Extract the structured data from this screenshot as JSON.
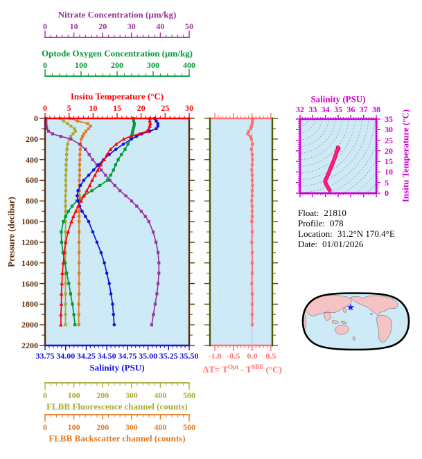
{
  "figure": {
    "background": "#ffffff",
    "plot_background": "#CEEAF6"
  },
  "axes": {
    "nitrate": {
      "title": "Nitrate Concentration (µm/kg)",
      "color": "#993399",
      "ticks": [
        "0",
        "10",
        "20",
        "30",
        "40",
        "50"
      ],
      "range": [
        0,
        50
      ]
    },
    "oxygen": {
      "title": "Optode Oxygen Concentration (µm/kg)",
      "color": "#009933",
      "ticks": [
        "0",
        "100",
        "200",
        "300",
        "400"
      ],
      "range": [
        0,
        400
      ]
    },
    "temperature": {
      "title": "Insitu Temperature (°C)",
      "color": "#FF0000",
      "ticks": [
        "0",
        "5",
        "10",
        "15",
        "20",
        "25",
        "30"
      ],
      "range": [
        0,
        30
      ]
    },
    "pressure": {
      "title": "Pressure (decibar)",
      "color": "#5A2D0B",
      "ticks": [
        "0",
        "200",
        "400",
        "600",
        "800",
        "1000",
        "1200",
        "1400",
        "1600",
        "1800",
        "2000",
        "2200"
      ],
      "range": [
        0,
        2200
      ]
    },
    "salinity": {
      "title": "Salinity (PSU)",
      "color": "#1111DD",
      "ticks": [
        "33.75",
        "34.00",
        "34.25",
        "34.50",
        "34.75",
        "35.00",
        "35.25",
        "35.50"
      ],
      "range": [
        33.75,
        35.5
      ]
    },
    "fluorescence": {
      "title": "FLBB Fluorescence channel (counts)",
      "color": "#AAAA33",
      "ticks": [
        "0",
        "100",
        "200",
        "300",
        "400",
        "500"
      ],
      "range": [
        0,
        500
      ]
    },
    "backscatter": {
      "title": "FLBB Backscatter channel (counts)",
      "color": "#E4791F",
      "ticks": [
        "0",
        "100",
        "200",
        "300",
        "400",
        "500"
      ],
      "range": [
        0,
        500
      ]
    },
    "delta": {
      "title_pre": "ΔT= T",
      "title_sup1": "Opt",
      "title_mid": " - T",
      "title_sup2": "SBE",
      "title_post": " (°C)",
      "color": "#FF7070",
      "frame_color": "#4C5800",
      "ticks": [
        "-1.0",
        "-0.5",
        "0.0",
        "0.5"
      ],
      "tick_values": [
        -1.0,
        -0.5,
        0.0,
        0.5
      ],
      "range": [
        -1.13,
        0.54
      ]
    },
    "ts": {
      "top_title": "Salinity (PSU)",
      "right_title": "Insitu Temperature (°C)",
      "color": "#CC00CC",
      "curve_color": "#FF14B4",
      "accent_color": "#EE1111",
      "top_ticks": [
        "32",
        "33",
        "34",
        "35",
        "36",
        "37",
        "38"
      ],
      "right_ticks": [
        "0",
        "5",
        "10",
        "15",
        "20",
        "25",
        "30",
        "35"
      ],
      "s_range": [
        32,
        38
      ],
      "t_range": [
        0,
        35
      ]
    }
  },
  "info": {
    "lines": [
      {
        "label": "Float:",
        "value": "21810"
      },
      {
        "label": "Profile:",
        "value": "078"
      },
      {
        "label": "Location:",
        "value": "31.2°N  170.4°E"
      },
      {
        "label": "Date:",
        "value": "01/01/2026"
      }
    ]
  },
  "map": {
    "land_color": "#F5C3C3",
    "ocean_color": "#CEEAF6",
    "outline_color": "#000000",
    "star_color": "#1A1AEE"
  },
  "chart_data": [
    {
      "type": "line",
      "title": "Vertical profiles vs pressure",
      "ylabel": "Pressure (decibar)",
      "ylim": [
        0,
        2200
      ],
      "y_inverted": true,
      "grid": false,
      "depths": [
        0,
        25,
        50,
        75,
        100,
        125,
        150,
        175,
        200,
        250,
        300,
        350,
        400,
        450,
        500,
        550,
        600,
        650,
        700,
        750,
        800,
        850,
        900,
        950,
        1000,
        1100,
        1200,
        1300,
        1400,
        1500,
        1600,
        1700,
        1800,
        1900,
        2000
      ],
      "series": [
        {
          "name": "Insitu Temperature (°C)",
          "color": "#FF0000",
          "marker": "triangle",
          "xlim": [
            0,
            30
          ],
          "values": [
            21.8,
            21.8,
            21.9,
            21.8,
            21.6,
            21.2,
            19.6,
            17.8,
            16.4,
            14.8,
            13.6,
            12.9,
            12.3,
            11.6,
            11.0,
            10.4,
            9.8,
            9.3,
            8.7,
            8.1,
            7.5,
            6.9,
            6.4,
            5.9,
            5.5,
            4.8,
            4.3,
            4.0,
            3.8,
            3.6,
            3.5,
            3.4,
            3.4,
            3.3,
            3.3
          ]
        },
        {
          "name": "Salinity (PSU)",
          "color": "#1111DD",
          "marker": "circle",
          "xlim": [
            33.75,
            35.5
          ],
          "values": [
            35.08,
            35.1,
            35.12,
            35.12,
            35.1,
            35.02,
            34.92,
            34.86,
            34.8,
            34.7,
            34.61,
            34.53,
            34.46,
            34.4,
            34.34,
            34.28,
            34.22,
            34.18,
            34.15,
            34.14,
            34.15,
            34.17,
            34.2,
            34.24,
            34.28,
            34.33,
            34.38,
            34.43,
            34.47,
            34.5,
            34.53,
            34.55,
            34.57,
            34.58,
            34.59
          ]
        },
        {
          "name": "Optode Oxygen Concentration (µm/kg)",
          "color": "#009933",
          "marker": "square",
          "xlim": [
            0,
            400
          ],
          "values": [
            245,
            246,
            248,
            247,
            245,
            243,
            242,
            240,
            238,
            230,
            222,
            212,
            203,
            196,
            190,
            182,
            173,
            152,
            130,
            108,
            88,
            75,
            65,
            57,
            51,
            45,
            46,
            50,
            55,
            60,
            66,
            71,
            76,
            80,
            83
          ]
        },
        {
          "name": "Nitrate Concentration (µm/kg)",
          "color": "#993399",
          "marker": "square",
          "xlim": [
            0,
            50
          ],
          "values": [
            0.3,
            0.3,
            0.3,
            0.4,
            0.6,
            1.2,
            2.6,
            5.5,
            9.0,
            12.0,
            14.0,
            15.3,
            16.5,
            18.0,
            19.5,
            21.0,
            22.5,
            24.2,
            26.0,
            28.0,
            30.0,
            31.8,
            33.4,
            34.8,
            36.0,
            37.5,
            38.5,
            39.2,
            39.5,
            39.5,
            39.2,
            38.8,
            38.2,
            37.6,
            37.0
          ]
        },
        {
          "name": "FLBB Fluorescence channel (counts)",
          "color": "#AAAA33",
          "marker": "square",
          "xlim": [
            0,
            500
          ],
          "values": [
            52,
            64,
            78,
            90,
            102,
            105,
            97,
            89,
            83,
            78,
            76,
            75,
            74,
            73,
            73,
            72,
            72,
            72,
            72,
            71,
            71,
            71,
            71,
            71,
            71,
            71,
            71,
            71,
            71,
            71,
            71,
            71,
            71,
            71,
            71
          ]
        },
        {
          "name": "FLBB Backscatter channel (counts)",
          "color": "#E4791F",
          "marker": "square",
          "xlim": [
            0,
            500
          ],
          "values": [
            86,
            112,
            148,
            158,
            151,
            142,
            135,
            130,
            126,
            123,
            122,
            121,
            121,
            120,
            120,
            120,
            119,
            119,
            119,
            119,
            119,
            118,
            118,
            118,
            118,
            118,
            118,
            118,
            118,
            118,
            118,
            118,
            117,
            117,
            117
          ]
        }
      ]
    },
    {
      "type": "line",
      "title": "ΔT = TOpt - TSBE (°C) vs pressure",
      "xlim": [
        -1.13,
        0.54
      ],
      "ylim": [
        0,
        2200
      ],
      "y_inverted": true,
      "color": "#FF7070",
      "depths": [
        0,
        25,
        50,
        75,
        100,
        125,
        150,
        175,
        200,
        250,
        300,
        350,
        400,
        450,
        500,
        550,
        600,
        650,
        700,
        750,
        800,
        850,
        900,
        950,
        1000,
        1100,
        1200,
        1300,
        1400,
        1500,
        1600,
        1700,
        1800,
        1900,
        2000
      ],
      "values": [
        0.02,
        0.01,
        0.0,
        -0.02,
        -0.04,
        -0.09,
        -0.12,
        -0.05,
        -0.02,
        0.01,
        -0.02,
        0.0,
        0.01,
        0.0,
        -0.01,
        0.0,
        0.0,
        0.01,
        0.0,
        0.0,
        -0.01,
        0.0,
        0.0,
        0.0,
        -0.01,
        0.0,
        -0.01,
        0.0,
        0.0,
        0.0,
        -0.01,
        0.0,
        0.0,
        0.0,
        0.0
      ]
    },
    {
      "type": "line",
      "title": "T-S diagram",
      "xlabel": "Salinity (PSU)",
      "ylabel": "Insitu Temperature (°C)",
      "xlim": [
        32,
        38
      ],
      "ylim": [
        0,
        35
      ],
      "isopycnal_contours": true,
      "points": [
        [
          34.97,
          21.6
        ],
        [
          35.03,
          21.2
        ],
        [
          34.93,
          20.4
        ],
        [
          34.82,
          18.2
        ],
        [
          34.7,
          16.2
        ],
        [
          34.57,
          14.2
        ],
        [
          34.45,
          12.4
        ],
        [
          34.33,
          10.6
        ],
        [
          34.22,
          9.0
        ],
        [
          34.1,
          7.4
        ],
        [
          34.0,
          6.2
        ],
        [
          33.98,
          5.4
        ],
        [
          34.05,
          4.2
        ],
        [
          34.15,
          3.2
        ],
        [
          34.27,
          2.0
        ],
        [
          34.33,
          1.3
        ]
      ]
    }
  ]
}
